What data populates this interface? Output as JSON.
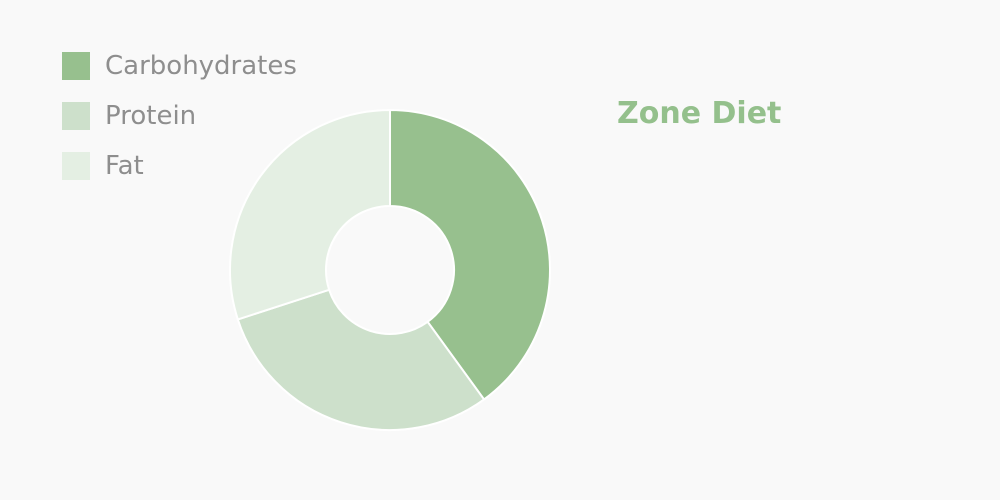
{
  "chart_data": {
    "type": "pie",
    "title": "Zone Diet",
    "hole": true,
    "legend_position": "top-left",
    "series": [
      {
        "name": "Carbohydrates",
        "value": 40,
        "color": "#97c08e"
      },
      {
        "name": "Protein",
        "value": 30,
        "color": "#cde0cb"
      },
      {
        "name": "Fat",
        "value": 30,
        "color": "#e4efe3"
      }
    ]
  }
}
